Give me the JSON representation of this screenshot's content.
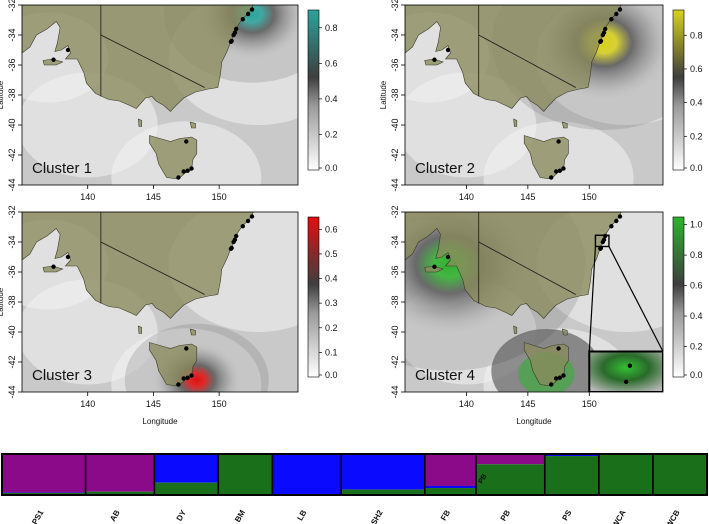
{
  "colors": {
    "land": "#8a8a5c",
    "land_edge": "#3a3a2a",
    "sea_base": "#c9c9c9",
    "cluster1": "#2aa39b",
    "cluster2": "#d8d21a",
    "cluster3": "#e01010",
    "cluster4": "#2eb32e",
    "bar_purple": "#8a0a8a",
    "bar_blue": "#0a0aff",
    "bar_green": "#1a6f1a"
  },
  "chart_data": [
    {
      "type": "heatmap",
      "title": "Cluster 1",
      "xlabel": "",
      "ylabel": "Latitude",
      "xlim": [
        135,
        156
      ],
      "ylim": [
        -44,
        -32
      ],
      "xticks": [
        "140",
        "145",
        "150"
      ],
      "yticks": [
        "-32",
        "-34",
        "-36",
        "-38",
        "-40",
        "-42",
        "-44"
      ],
      "colorbar": {
        "ticks": [
          "0.0",
          "0.2",
          "0.4",
          "0.6",
          "0.8"
        ],
        "max": 0.9
      },
      "hotspot": {
        "lon": 152.5,
        "lat": -32.6,
        "value": 0.9
      }
    },
    {
      "type": "heatmap",
      "title": "Cluster 2",
      "xlabel": "",
      "ylabel": "Latitude",
      "xlim": [
        135,
        156
      ],
      "ylim": [
        -44,
        -32
      ],
      "xticks": [
        "140",
        "145",
        "150"
      ],
      "yticks": [
        "-32",
        "-34",
        "-36",
        "-38",
        "-40",
        "-42",
        "-44"
      ],
      "colorbar": {
        "ticks": [
          "0.0",
          "0.2",
          "0.4",
          "0.6",
          "0.8"
        ],
        "max": 0.95
      },
      "hotspot": {
        "lon": 151.2,
        "lat": -34.5,
        "value": 0.9
      }
    },
    {
      "type": "heatmap",
      "title": "Cluster 3",
      "xlabel": "Longitude",
      "ylabel": "Latitude",
      "xlim": [
        135,
        156
      ],
      "ylim": [
        -44,
        -32
      ],
      "xticks": [
        "140",
        "145",
        "150"
      ],
      "yticks": [
        "-32",
        "-34",
        "-36",
        "-38",
        "-40",
        "-42",
        "-44"
      ],
      "colorbar": {
        "ticks": [
          "0.0",
          "0.1",
          "0.2",
          "0.3",
          "0.4",
          "0.5",
          "0.6"
        ],
        "max": 0.65
      },
      "hotspot": {
        "lon": 148.3,
        "lat": -43.2,
        "value": 0.6
      }
    },
    {
      "type": "heatmap",
      "title": "Cluster 4",
      "xlabel": "Longitude",
      "ylabel": "",
      "xlim": [
        135,
        156
      ],
      "ylim": [
        -44,
        -32
      ],
      "xticks": [
        "140",
        "145",
        "150"
      ],
      "yticks": [
        "-32",
        "-34",
        "-36",
        "-38",
        "-40",
        "-42",
        "-44"
      ],
      "colorbar": {
        "ticks": [
          "0.0",
          "0.2",
          "0.4",
          "0.6",
          "0.8",
          "1.0"
        ],
        "max": 1.05
      },
      "hotspot": {
        "lon": 138.6,
        "lat": -35.5,
        "value": 1.0
      }
    },
    {
      "type": "bar",
      "stacked": true,
      "categories": [
        "PS1",
        "AB",
        "DY",
        "BM",
        "LB",
        "SH2",
        "FB",
        "PB",
        "PS",
        "WCA",
        "WCB"
      ],
      "group_widths": [
        85,
        70,
        65,
        55,
        70,
        85,
        52,
        70,
        55,
        55,
        55
      ],
      "series": [
        {
          "values": [
            0.94,
            0.92,
            0.0,
            0.0,
            0.0,
            0.0,
            0.78,
            0.25,
            0.0,
            0.0,
            0.0
          ]
        },
        {
          "values": [
            0.01,
            0.0,
            0.7,
            0.0,
            1.0,
            0.87,
            0.05,
            0.0,
            0.05,
            0.0,
            0.0
          ]
        },
        {
          "values": [
            0.05,
            0.08,
            0.3,
            1.0,
            0.0,
            0.13,
            0.17,
            0.75,
            0.95,
            1.0,
            1.0
          ]
        }
      ],
      "annotation": "PB"
    }
  ]
}
